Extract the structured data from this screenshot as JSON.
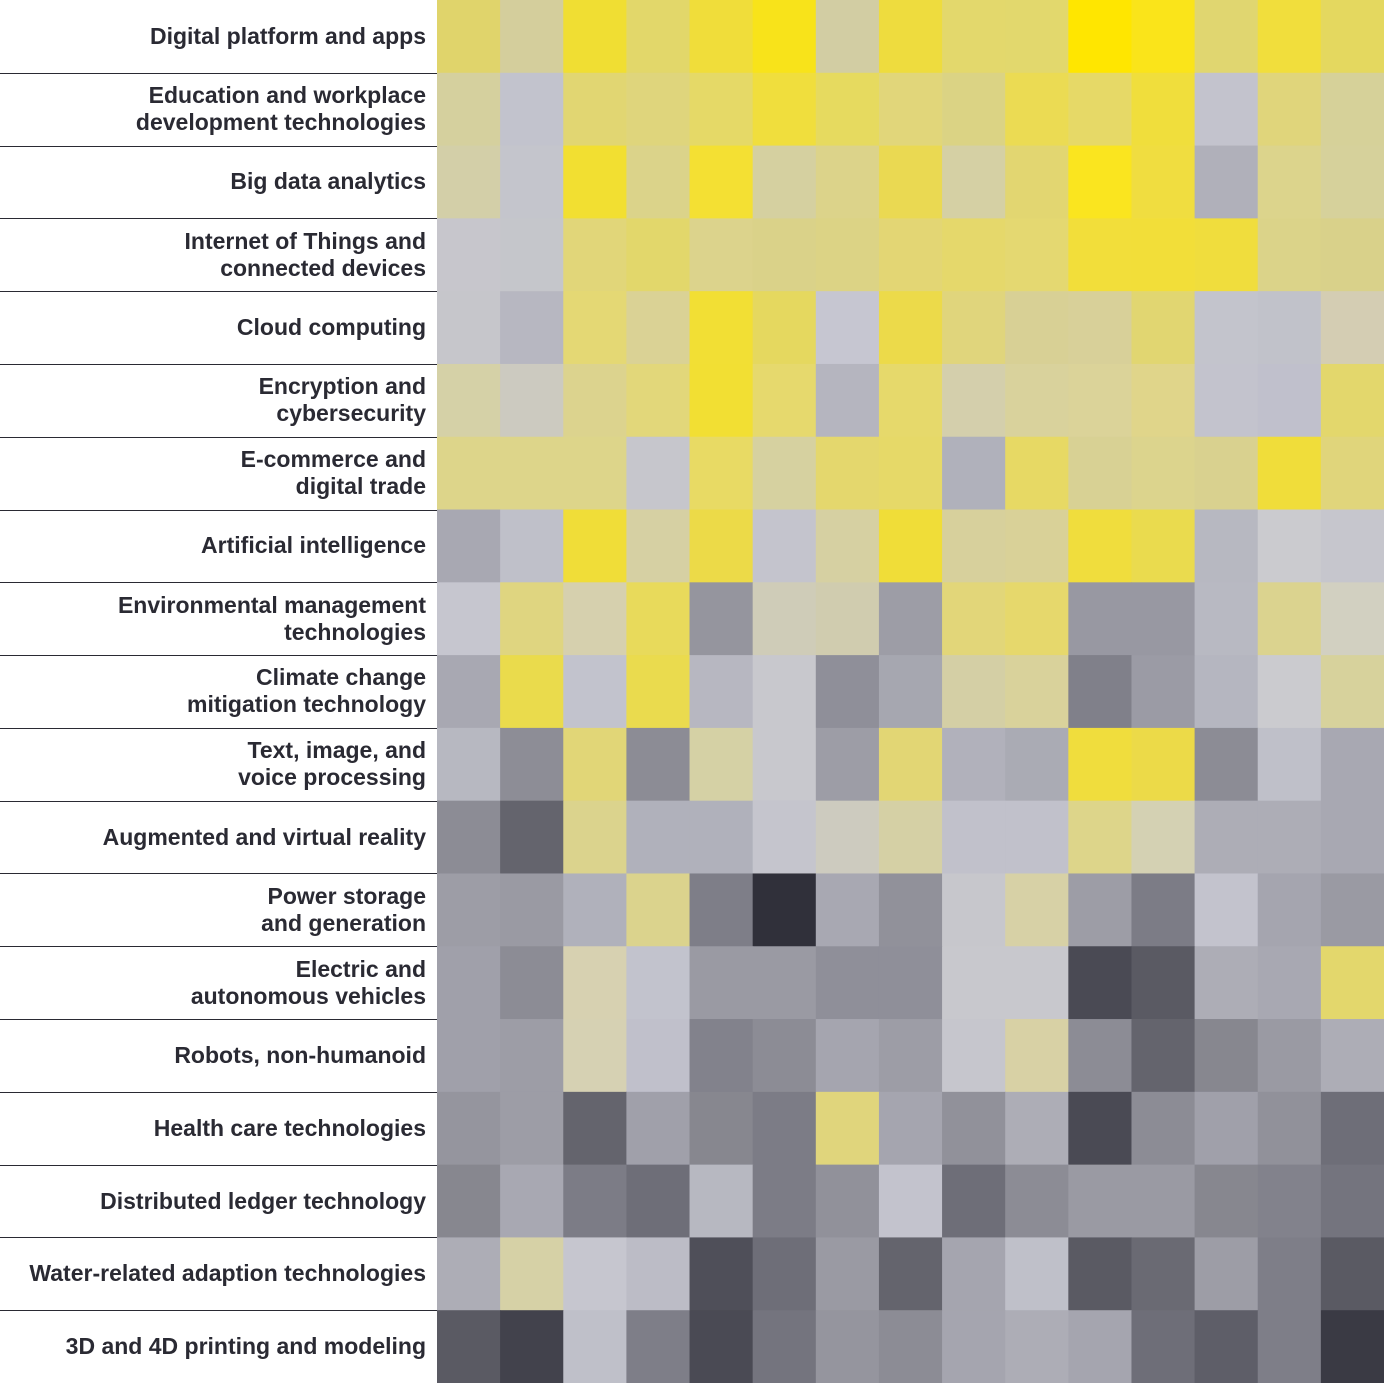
{
  "chart_data": {
    "type": "heatmap",
    "rows": [
      "Digital platform and apps",
      "Education and workplace\ndevelopment technologies",
      "Big data analytics",
      "Internet of Things and\nconnected devices",
      "Cloud computing",
      "Encryption and\ncybersecurity",
      "E-commerce and\ndigital trade",
      "Artificial intelligence",
      "Environmental management\ntechnologies",
      "Climate change\nmitigation technology",
      "Text, image, and\nvoice processing",
      "Augmented and virtual reality",
      "Power storage\nand generation",
      "Electric and\nautonomous vehicles",
      "Robots, non-humanoid",
      "Health care technologies",
      "Distributed ledger technology",
      "Water-related adaption technologies",
      "3D and 4D printing and modeling"
    ],
    "cells": [
      [
        "#e0d46b",
        "#d4ce9c",
        "#f0de33",
        "#e2d76a",
        "#f0dd3a",
        "#f8e31a",
        "#d2cda3",
        "#eedc3e",
        "#e3d86c",
        "#e2d86d",
        "#ffe600",
        "#fae41a",
        "#e0d670",
        "#f1de3c",
        "#e4d85f"
      ],
      [
        "#d5d09e",
        "#c2c3cd",
        "#e1d672",
        "#dfd57c",
        "#e5d967",
        "#f0de3d",
        "#e6da5f",
        "#e1d67a",
        "#dbd384",
        "#ebdb53",
        "#e6d967",
        "#f0de3c",
        "#c3c3cd",
        "#e0d57b",
        "#d6d199"
      ],
      [
        "#d3cfa8",
        "#c4c5cc",
        "#f2df31",
        "#dbd38a",
        "#f4e033",
        "#d5d0a0",
        "#dcd38a",
        "#ead952",
        "#d5d0a4",
        "#e2d671",
        "#fae51f",
        "#f0dd40",
        "#b0b0ba",
        "#dcd48c",
        "#d6d19b"
      ],
      [
        "#c7c6cc",
        "#c5c6cb",
        "#e1d679",
        "#e2d76b",
        "#dcd38c",
        "#dad289",
        "#dcd385",
        "#e3d674",
        "#e5d86b",
        "#e4d871",
        "#f2de3a",
        "#f2de39",
        "#f0dd3d",
        "#dbd389",
        "#d9d18a"
      ],
      [
        "#c6c6cb",
        "#b7b7c1",
        "#e4d874",
        "#dad295",
        "#f2df34",
        "#e5d85f",
        "#c6c6d1",
        "#ecda4a",
        "#e0d57c",
        "#d8d095",
        "#d8d099",
        "#e1d671",
        "#c3c4cc",
        "#c1c2ca",
        "#d4cdb3"
      ],
      [
        "#d5d1a7",
        "#cccac0",
        "#dcd38e",
        "#e2d77a",
        "#f2df33",
        "#e6d96d",
        "#b5b5bf",
        "#e6d96b",
        "#d4cfac",
        "#d9d29c",
        "#dbd399",
        "#e0d58a",
        "#c3c3cd",
        "#c0c0cc",
        "#e3d76c"
      ],
      [
        "#ddd58a",
        "#ddd58a",
        "#ddd58a",
        "#c6c6cc",
        "#e8da64",
        "#d6d1a0",
        "#e4d76d",
        "#e6d968",
        "#b0b1bb",
        "#e7d964",
        "#d8d194",
        "#dcd48d",
        "#d9d18f",
        "#f0dd3a",
        "#e0d57b"
      ],
      [
        "#a8a8b2",
        "#bfc0c9",
        "#f0dd38",
        "#d6d0a3",
        "#ecda48",
        "#c4c4cd",
        "#d6d0a2",
        "#f0dd38",
        "#d7d09c",
        "#d9d198",
        "#f0dd3d",
        "#eadb4e",
        "#b7b8c1",
        "#cbcbcf",
        "#c6c6cd"
      ],
      [
        "#c6c6cf",
        "#dfd580",
        "#d6d0ae",
        "#e8da5b",
        "#95959e",
        "#cfccb8",
        "#d0ccaf",
        "#9d9da6",
        "#e2d679",
        "#e6d86c",
        "#9898a2",
        "#9898a2",
        "#b8b9c2",
        "#dbd38f",
        "#d2d0c1"
      ],
      [
        "#a8a8b2",
        "#eadb4c",
        "#c2c3cd",
        "#eadb4e",
        "#b7b7c1",
        "#c8c8cd",
        "#8f8f99",
        "#a6a7b0",
        "#d4cfa5",
        "#d9d29b",
        "#80808a",
        "#9b9ba5",
        "#b5b6c0",
        "#cbcbcf",
        "#d7d29c"
      ],
      [
        "#b7b8c1",
        "#8d8d96",
        "#e1d677",
        "#8c8c95",
        "#d5d1a5",
        "#c8c8cd",
        "#9d9da6",
        "#e2d674",
        "#b1b1bb",
        "#aaabb4",
        "#f0dd3d",
        "#ecda48",
        "#8c8c95",
        "#bfc0c9",
        "#a8a8b2"
      ],
      [
        "#8c8c95",
        "#64646d",
        "#dbd38d",
        "#b0b1bb",
        "#b0b1bb",
        "#c5c5cd",
        "#cdcbbf",
        "#d5d0a5",
        "#c1c1cb",
        "#c1c1cb",
        "#ddd58a",
        "#d4d1b3",
        "#adadb6",
        "#adadb6",
        "#a8a8b2"
      ],
      [
        "#9d9da6",
        "#9a9aa3",
        "#b0b1bb",
        "#dbd38d",
        "#7e7e88",
        "#30303a",
        "#a8a8b2",
        "#91919a",
        "#c7c7cc",
        "#d7d1a6",
        "#9d9da6",
        "#7c7c86",
        "#c3c3cd",
        "#a5a5af",
        "#9a9aa3"
      ],
      [
        "#a0a0aa",
        "#8c8c95",
        "#d7d1b1",
        "#c2c3cd",
        "#9a9aa3",
        "#9a9aa3",
        "#8f8f99",
        "#8f8f99",
        "#c8c8cd",
        "#c8c8cd",
        "#4a4a54",
        "#5a5a63",
        "#adadb6",
        "#a8a8b2",
        "#e3d76c"
      ],
      [
        "#a0a0aa",
        "#9d9da6",
        "#d6d1b3",
        "#c0c0cb",
        "#82828c",
        "#8c8c95",
        "#a5a5af",
        "#9d9da6",
        "#c6c6cd",
        "#d8d1a5",
        "#8c8c95",
        "#64646d",
        "#87878f",
        "#9a9aa3",
        "#adadb6"
      ],
      [
        "#95959e",
        "#9d9da6",
        "#64646d",
        "#a0a0aa",
        "#87878f",
        "#7c7c86",
        "#e0d57c",
        "#a5a5af",
        "#91919a",
        "#adadb6",
        "#4a4a54",
        "#8c8c95",
        "#a0a0aa",
        "#91919a",
        "#6e6e78"
      ],
      [
        "#87878f",
        "#a8a8b2",
        "#7c7c86",
        "#6e6e78",
        "#b7b8c1",
        "#7c7c86",
        "#91919a",
        "#c3c3cd",
        "#6e6e78",
        "#8c8c95",
        "#9a9aa3",
        "#9a9aa3",
        "#87878f",
        "#82828c",
        "#74747e"
      ],
      [
        "#adadb6",
        "#d6d1a6",
        "#c6c6cf",
        "#bcbcc6",
        "#4f4f59",
        "#6e6e78",
        "#9a9aa3",
        "#64646d",
        "#a5a5af",
        "#bfc0c9",
        "#5a5a63",
        "#6a6a73",
        "#9d9da6",
        "#7e7e88",
        "#5a5a63"
      ],
      [
        "#5a5a63",
        "#42424c",
        "#bfc0c9",
        "#7e7e88",
        "#4a4a54",
        "#74747e",
        "#95959e",
        "#8c8c95",
        "#a5a5af",
        "#adadb6",
        "#a5a5af",
        "#6e6e78",
        "#5e5e68",
        "#7e7e88",
        "#3a3a44"
      ]
    ]
  }
}
